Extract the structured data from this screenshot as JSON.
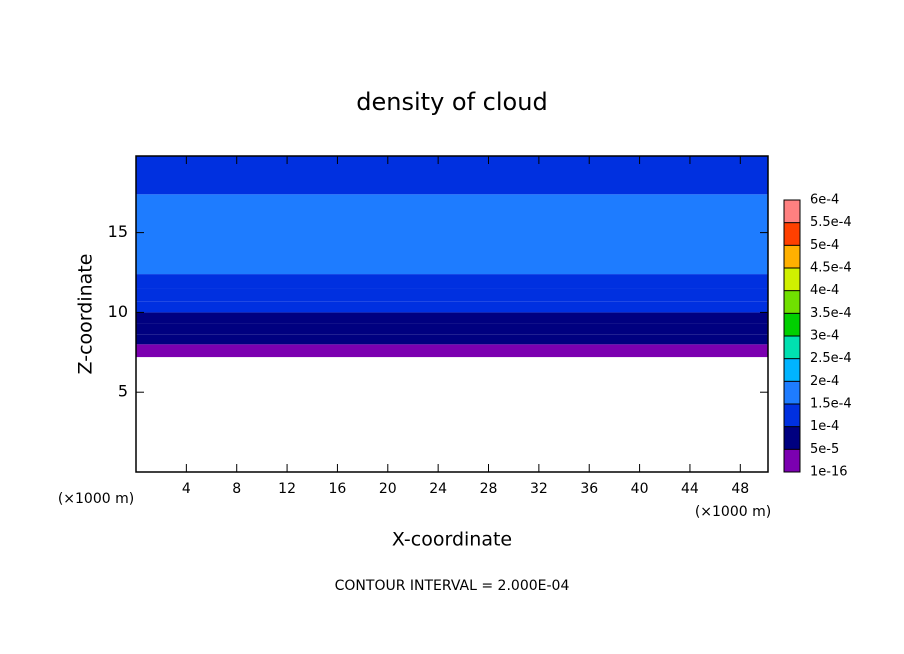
{
  "chart_data": {
    "type": "contour",
    "title": "density of cloud",
    "x_label": "X-coordinate",
    "y_label": "Z-coordinate",
    "x_unit": "(×1000 m)",
    "y_unit": "(×1000 m)",
    "footnote": "CONTOUR INTERVAL = 2.000E-04",
    "xlim": [
      0,
      50.2
    ],
    "ylim": [
      0,
      19.8
    ],
    "xticks": [
      4,
      8,
      12,
      16,
      20,
      24,
      28,
      32,
      36,
      40,
      44,
      48
    ],
    "yticks": [
      5,
      10,
      15
    ],
    "layers": [
      {
        "z0": 7.2,
        "z1": 8.0,
        "density": 3e-05
      },
      {
        "z0": 8.0,
        "z1": 8.6,
        "density": 6e-05
      },
      {
        "z0": 8.6,
        "z1": 9.3,
        "density": 8e-05
      },
      {
        "z0": 9.3,
        "z1": 10.0,
        "density": 9.5e-05
      },
      {
        "z0": 10.0,
        "z1": 10.7,
        "density": 0.00011
      },
      {
        "z0": 10.7,
        "z1": 11.5,
        "density": 0.000125
      },
      {
        "z0": 11.5,
        "z1": 12.4,
        "density": 0.00014
      },
      {
        "z0": 12.4,
        "z1": 17.4,
        "density": 0.00016
      },
      {
        "z0": 17.4,
        "z1": 19.8,
        "density": 0.000145
      }
    ],
    "colorbar": {
      "ticks": [
        {
          "value": 1e-16,
          "label": "1e-16"
        },
        {
          "value": 5e-05,
          "label": "5e-5"
        },
        {
          "value": 0.0001,
          "label": "1e-4"
        },
        {
          "value": 0.00015,
          "label": "1.5e-4"
        },
        {
          "value": 0.0002,
          "label": "2e-4"
        },
        {
          "value": 0.00025,
          "label": "2.5e-4"
        },
        {
          "value": 0.0003,
          "label": "3e-4"
        },
        {
          "value": 0.00035,
          "label": "3.5e-4"
        },
        {
          "value": 0.0004,
          "label": "4e-4"
        },
        {
          "value": 0.00045,
          "label": "4.5e-4"
        },
        {
          "value": 0.0005,
          "label": "5e-4"
        },
        {
          "value": 0.00055,
          "label": "5.5e-4"
        },
        {
          "value": 0.0006,
          "label": "6e-4"
        }
      ],
      "colors": [
        "#7b00b0",
        "#000080",
        "#0030e0",
        "#1e7cff",
        "#00b4ff",
        "#00e0b0",
        "#00d000",
        "#70e000",
        "#d0f000",
        "#ffb000",
        "#ff4000",
        "#ff8080"
      ]
    }
  }
}
